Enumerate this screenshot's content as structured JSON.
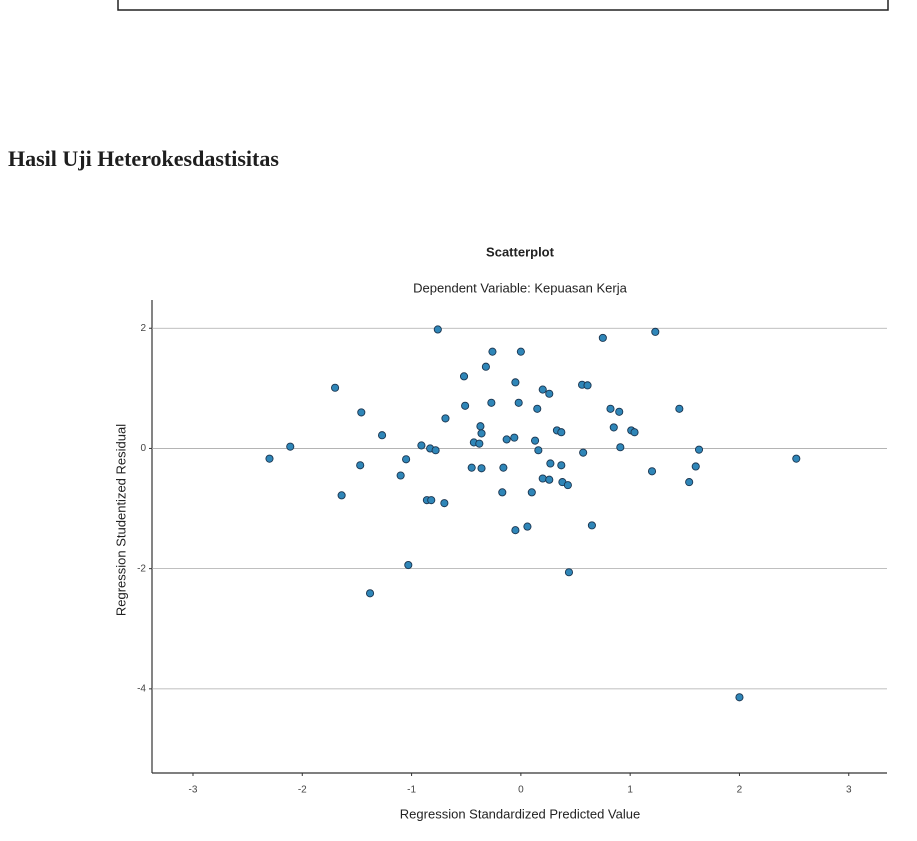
{
  "heading": "Hasil Uji Heterokesdastisitas",
  "chart_data": {
    "type": "scatter",
    "title": "Scatterplot",
    "subtitle": "Dependent Variable: Kepuasan Kerja",
    "x_label": "Regression Standardized Predicted Value",
    "y_label": "Regression Studentized Residual",
    "color": "#2f86b8",
    "grid": "y",
    "xlim": [
      -3.375,
      3.35
    ],
    "ylim": [
      -5.4,
      2.47
    ],
    "xticks": [
      -3,
      -2,
      -1,
      0,
      1,
      2,
      3
    ],
    "yticks": [
      -4,
      -2,
      0,
      2
    ],
    "x": [
      -2.3,
      -2.11,
      -1.7,
      -1.64,
      -1.46,
      -1.47,
      -1.27,
      -1.38,
      -1.1,
      -1.05,
      -1.03,
      -0.91,
      -0.86,
      -0.82,
      -0.83,
      -0.78,
      -0.76,
      -0.7,
      -0.69,
      -0.51,
      -0.43,
      -0.38,
      -0.37,
      -0.52,
      -0.45,
      -0.36,
      -0.32,
      -0.26,
      -0.36,
      -0.27,
      -0.16,
      -0.05,
      -0.06,
      -0.17,
      -0.13,
      -0.05,
      0.06,
      0.1,
      0.16,
      0.2,
      0.26,
      0.2,
      0.26,
      0.27,
      0.33,
      0.37,
      0.37,
      0.38,
      0.43,
      0.44,
      0.56,
      0.61,
      0.57,
      0.65,
      0.75,
      0.82,
      0.9,
      0.85,
      0.91,
      1.01,
      1.04,
      1.2,
      1.23,
      1.45,
      1.54,
      1.6,
      1.63,
      2.0,
      2.52,
      0.0,
      -0.02,
      0.15,
      0.13
    ],
    "values": [
      -0.17,
      0.03,
      1.01,
      -0.78,
      0.6,
      -0.28,
      0.22,
      -2.41,
      -0.45,
      -0.18,
      -1.94,
      0.05,
      -0.86,
      -0.86,
      0.0,
      -0.03,
      1.98,
      -0.91,
      0.5,
      0.71,
      0.1,
      0.08,
      0.37,
      1.2,
      -0.32,
      -0.33,
      1.36,
      1.61,
      0.25,
      0.76,
      -0.32,
      1.1,
      0.18,
      -0.73,
      0.15,
      -1.36,
      -1.3,
      -0.73,
      -0.03,
      0.98,
      0.91,
      -0.5,
      -0.52,
      -0.25,
      0.3,
      0.27,
      -0.28,
      -0.56,
      -0.61,
      -2.06,
      1.06,
      1.05,
      -0.07,
      -1.28,
      1.84,
      0.66,
      0.61,
      0.35,
      0.02,
      0.3,
      0.27,
      -0.38,
      1.94,
      0.66,
      -0.56,
      -0.3,
      -0.02,
      -4.14,
      -0.17,
      1.61,
      0.76,
      0.66,
      0.13
    ]
  }
}
